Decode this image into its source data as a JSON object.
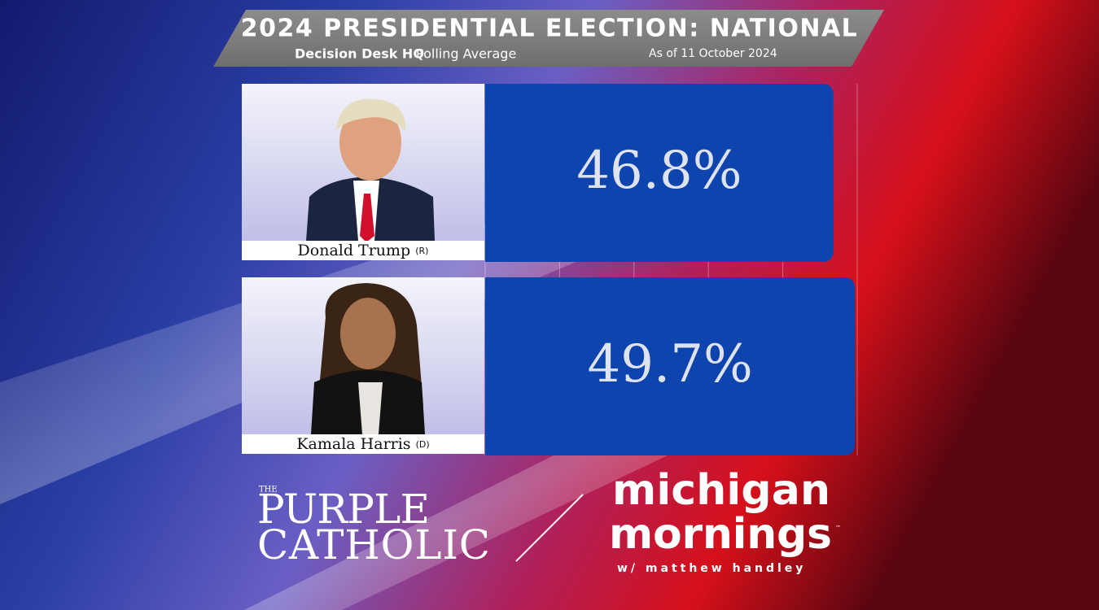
{
  "chart_data": {
    "type": "bar",
    "orientation": "horizontal",
    "title": "2024 PRESIDENTIAL ELECTION: NATIONAL",
    "source": "Decision Desk HQ",
    "subtitle": "Polling Average",
    "date": "As of 11 October 2024",
    "categories": [
      "Donald Trump",
      "Kamala Harris"
    ],
    "parties": [
      "(R)",
      "(D)"
    ],
    "values": [
      46.8,
      49.7
    ],
    "value_labels": [
      "46.8%",
      "49.7%"
    ],
    "color": "#0d44ae",
    "xlim": [
      0,
      50
    ],
    "xticks": [
      0,
      10,
      20,
      30,
      40,
      50
    ],
    "grid": true
  },
  "branding": {
    "left": {
      "small": "THE",
      "line1": "PURPLE",
      "line2": "CATHOLIC"
    },
    "right": {
      "line1": "michigan",
      "line2": "mornings",
      "mark": "™",
      "tagline": "w/ matthew handley"
    }
  }
}
